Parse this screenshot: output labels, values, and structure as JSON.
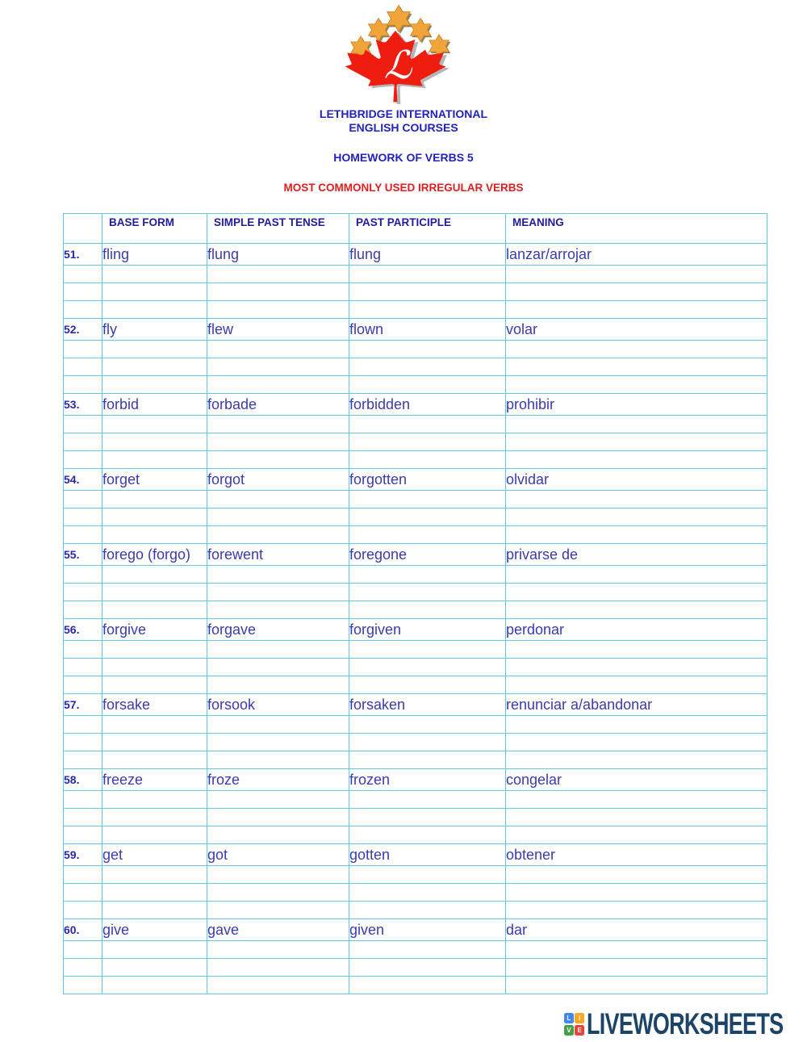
{
  "logo": {
    "organization_line1": "LETHBRIDGE INTERNATIONAL",
    "organization_line2": "ENGLISH COURSES",
    "leaf_letter": "ℒ",
    "colors": {
      "leaf_red": "#EE1D10",
      "star_orange": "#F1A437",
      "shadow_gray": "#A8A8A8",
      "star_shadow": "#93825F"
    }
  },
  "titles": {
    "homework": "HOMEWORK OF VERBS 5",
    "subtitle": "MOST COMMONLY USED IRREGULAR VERBS",
    "title_blue": "#2222BD",
    "subtitle_red": "#DE2020"
  },
  "table": {
    "border_color": "#5FC9E6",
    "header_text_color": "#1E1E9C",
    "cell_text_color": "#3B3BAE",
    "headers": [
      "",
      "BASE FORM",
      "SIMPLE PAST TENSE",
      "PAST PARTICIPLE",
      "MEANING"
    ],
    "empty_rows_after_each_verb": 3,
    "rows": [
      {
        "num": "51.",
        "base": "fling",
        "past": "flung",
        "participle": "flung",
        "meaning": "lanzar/arrojar"
      },
      {
        "num": "52.",
        "base": "fly",
        "past": "flew",
        "participle": "flown",
        "meaning": "volar"
      },
      {
        "num": "53.",
        "base": "forbid",
        "past": "forbade",
        "participle": "forbidden",
        "meaning": "prohibir"
      },
      {
        "num": "54.",
        "base": "forget",
        "past": "forgot",
        "participle": "forgotten",
        "meaning": "olvidar"
      },
      {
        "num": "55.",
        "base": "forego (forgo)",
        "past": "forewent",
        "participle": "foregone",
        "meaning": "privarse de"
      },
      {
        "num": "56.",
        "base": "forgive",
        "past": "forgave",
        "participle": "forgiven",
        "meaning": "perdonar"
      },
      {
        "num": "57.",
        "base": "forsake",
        "past": "forsook",
        "participle": "forsaken",
        "meaning": "renunciar a/abandonar"
      },
      {
        "num": "58.",
        "base": "freeze",
        "past": "froze",
        "participle": "frozen",
        "meaning": "congelar"
      },
      {
        "num": "59.",
        "base": "get",
        "past": "got",
        "participle": "gotten",
        "meaning": "obtener"
      },
      {
        "num": "60.",
        "base": "give",
        "past": "gave",
        "participle": "given",
        "meaning": "dar"
      }
    ]
  },
  "footer": {
    "brand": "LIVEWORKSHEETS",
    "brand_color": "#1C4467",
    "squares": [
      {
        "letter": "L",
        "color": "#4285F4"
      },
      {
        "letter": "I",
        "color": "#F9A826"
      },
      {
        "letter": "V",
        "color": "#43A047"
      },
      {
        "letter": "E",
        "color": "#E8423B"
      }
    ]
  }
}
